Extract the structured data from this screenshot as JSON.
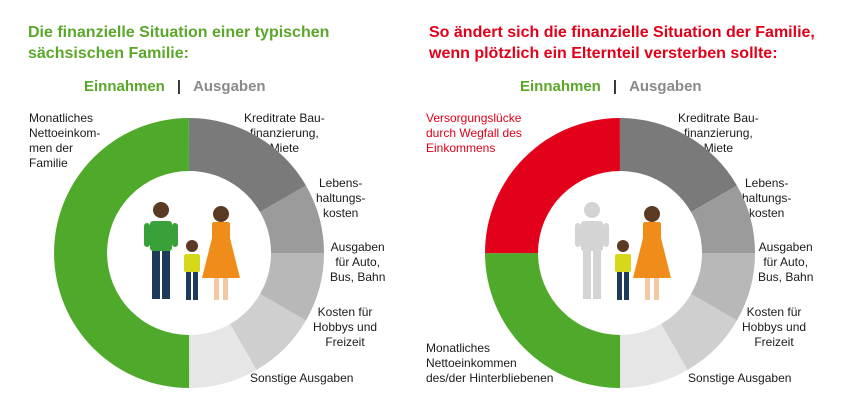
{
  "left": {
    "title_lines": [
      "Die finanzielle Situation einer typischen",
      "sächsischen Familie:"
    ],
    "legend": {
      "income": "Einnahmen",
      "separator": "|",
      "expenses": "Ausgaben"
    },
    "income_label_lines": [
      "Monatliches",
      "Nettoeinkom-",
      "men der",
      "Familie"
    ],
    "expense_labels": [
      [
        "Kreditrate Bau-",
        "finanzierung,",
        "Miete"
      ],
      [
        "Lebens-",
        "haltungs-",
        "kosten"
      ],
      [
        "Ausgaben",
        "für Auto,",
        "Bus, Bahn"
      ],
      [
        "Kosten für",
        "Hobbys und",
        "Freizeit"
      ],
      [
        "Sonstige Ausgaben"
      ]
    ]
  },
  "right": {
    "title_lines": [
      "So ändert sich die finanzielle Situation der Familie,",
      "wenn plötzlich ein Elternteil versterben sollte:"
    ],
    "legend": {
      "income": "Einnahmen",
      "separator": "|",
      "expenses": "Ausgaben"
    },
    "gap_label_lines": [
      "Versorgungslücke",
      "durch Wegfall des",
      "Einkommens"
    ],
    "income_label_lines": [
      "Monatliches",
      "Nettoeinkommen",
      "des/der Hinterbliebenen"
    ],
    "expense_labels": [
      [
        "Kreditrate Bau-",
        "finanzierung,",
        "Miete"
      ],
      [
        "Lebens-",
        "haltungs-",
        "kosten"
      ],
      [
        "Ausgaben",
        "für Auto,",
        "Bus, Bahn"
      ],
      [
        "Kosten für",
        "Hobbys und",
        "Freizeit"
      ],
      [
        "Sonstige Ausgaben"
      ]
    ]
  },
  "colors": {
    "income": "#4faa2c",
    "gap": "#e2001a",
    "expenses": [
      "#7a7a7a",
      "#9b9b9b",
      "#b8b8b8",
      "#cfcfcf",
      "#e6e6e6"
    ],
    "survivor_figure": "#d4d4d4"
  },
  "chart_data": [
    {
      "type": "donut",
      "segments": [
        {
          "group": "expenses",
          "fraction": 0.1667
        },
        {
          "group": "expenses",
          "fraction": 0.0833
        },
        {
          "group": "expenses",
          "fraction": 0.0833
        },
        {
          "group": "expenses",
          "fraction": 0.0833
        },
        {
          "group": "expenses",
          "fraction": 0.0833
        },
        {
          "group": "income",
          "fraction": 0.5
        }
      ]
    },
    {
      "type": "donut",
      "segments": [
        {
          "group": "expenses",
          "fraction": 0.1667
        },
        {
          "group": "expenses",
          "fraction": 0.0833
        },
        {
          "group": "expenses",
          "fraction": 0.0833
        },
        {
          "group": "expenses",
          "fraction": 0.0833
        },
        {
          "group": "expenses",
          "fraction": 0.0833
        },
        {
          "group": "income",
          "fraction": 0.25
        },
        {
          "group": "gap",
          "fraction": 0.25
        }
      ]
    }
  ]
}
